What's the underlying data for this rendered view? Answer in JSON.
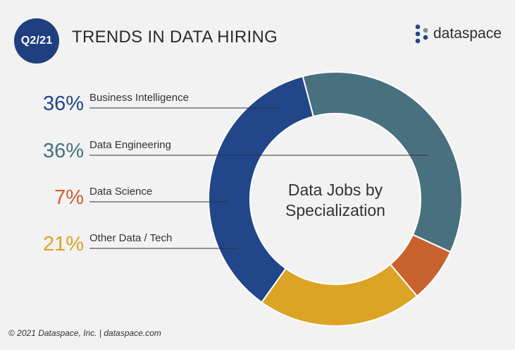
{
  "header": {
    "badge": "Q2/21",
    "title": "TRENDS IN DATA HIRING",
    "logo_text": "dataspace"
  },
  "colors": {
    "background": "#f2f2f2",
    "badge": "#1f3f7e",
    "business_intelligence": "#21468a",
    "data_engineering": "#49707f",
    "data_science": "#c8622d",
    "other": "#dca424"
  },
  "chart_data": {
    "type": "pie",
    "style": "donut",
    "title": "Data Jobs by Specialization",
    "title_lines": [
      "Data Jobs by",
      "Specialization"
    ],
    "labels": [
      "Business Intelligence",
      "Data Engineering",
      "Data Science",
      "Other Data / Tech"
    ],
    "values": [
      36,
      36,
      7,
      21
    ],
    "value_labels": [
      "36%",
      "36%",
      "7%",
      "21%"
    ],
    "colors": [
      "#21468a",
      "#49707f",
      "#c8622d",
      "#dca424"
    ],
    "start_angle_deg": 215.5,
    "legend_position": "left"
  },
  "footer": {
    "text": "© 2021 Dataspace, Inc. | dataspace.com"
  }
}
